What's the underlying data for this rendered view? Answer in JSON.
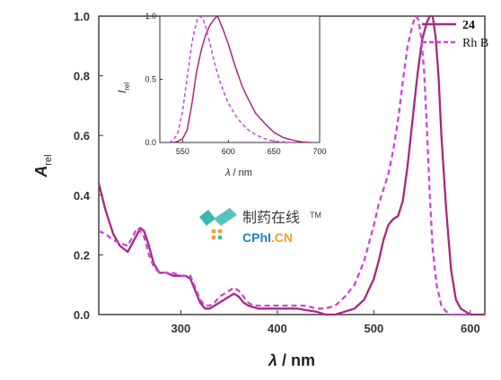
{
  "colors": {
    "series_24": "#a8287e",
    "series_rhb": "#cc44dd",
    "axis": "#333333",
    "watermark_teal": "#39b8b0",
    "watermark_orange": "#f0a030",
    "watermark_blue": "#1f7fc4",
    "watermark_text": "#3b3b3b"
  },
  "chart_data": [
    {
      "id": "main",
      "type": "line",
      "xlabel_symbol": "λ",
      "xlabel_unit": " / nm",
      "ylabel_main": "A",
      "ylabel_sub": "rel",
      "xlim": [
        215,
        615
      ],
      "ylim": [
        0,
        1.0
      ],
      "xticks": [
        300,
        400,
        500,
        600
      ],
      "yticks": [
        0.0,
        0.2,
        0.4,
        0.6,
        0.8,
        1.0
      ],
      "ytick_labels": [
        "0.0",
        "0.2",
        "0.4",
        "0.6",
        "0.8",
        "1.0"
      ],
      "legend": {
        "position": "top-right"
      },
      "series": [
        {
          "name": "24",
          "style": "solid",
          "x": [
            215,
            222,
            230,
            237,
            245,
            250,
            255,
            258,
            262,
            267,
            272,
            278,
            285,
            292,
            300,
            305,
            310,
            315,
            320,
            325,
            330,
            335,
            340,
            345,
            350,
            355,
            360,
            365,
            370,
            375,
            380,
            390,
            400,
            410,
            420,
            430,
            440,
            450,
            460,
            470,
            480,
            490,
            500,
            505,
            510,
            515,
            520,
            525,
            530,
            535,
            540,
            545,
            550,
            555,
            558,
            561,
            564,
            567,
            570,
            575,
            580,
            585,
            590,
            595,
            600,
            605,
            610,
            615
          ],
          "y": [
            0.44,
            0.35,
            0.27,
            0.23,
            0.21,
            0.24,
            0.27,
            0.29,
            0.28,
            0.23,
            0.17,
            0.14,
            0.14,
            0.13,
            0.13,
            0.13,
            0.12,
            0.08,
            0.04,
            0.02,
            0.02,
            0.03,
            0.04,
            0.05,
            0.06,
            0.07,
            0.06,
            0.04,
            0.03,
            0.025,
            0.02,
            0.02,
            0.02,
            0.02,
            0.02,
            0.015,
            0.01,
            0.0,
            0.0,
            0.01,
            0.02,
            0.05,
            0.12,
            0.18,
            0.25,
            0.3,
            0.32,
            0.33,
            0.38,
            0.5,
            0.65,
            0.8,
            0.92,
            0.98,
            1.0,
            1.0,
            0.93,
            0.8,
            0.6,
            0.35,
            0.15,
            0.05,
            0.02,
            0.01,
            0.0,
            0.0,
            0.0,
            0.0
          ]
        },
        {
          "name": "Rh B",
          "style": "dashed",
          "x": [
            215,
            222,
            230,
            237,
            245,
            250,
            255,
            258,
            262,
            267,
            272,
            278,
            285,
            292,
            300,
            305,
            310,
            315,
            320,
            325,
            330,
            335,
            340,
            345,
            350,
            355,
            360,
            365,
            370,
            375,
            380,
            390,
            400,
            410,
            420,
            430,
            440,
            450,
            460,
            470,
            480,
            490,
            500,
            505,
            510,
            515,
            520,
            525,
            530,
            535,
            540,
            543,
            546,
            549,
            552,
            555,
            558,
            561,
            565,
            570,
            575,
            580,
            585,
            590,
            595,
            600
          ],
          "y": [
            0.28,
            0.27,
            0.25,
            0.24,
            0.23,
            0.26,
            0.29,
            0.28,
            0.26,
            0.2,
            0.16,
            0.14,
            0.14,
            0.14,
            0.13,
            0.13,
            0.13,
            0.09,
            0.05,
            0.03,
            0.03,
            0.04,
            0.06,
            0.07,
            0.08,
            0.09,
            0.08,
            0.06,
            0.04,
            0.03,
            0.03,
            0.03,
            0.03,
            0.03,
            0.03,
            0.03,
            0.02,
            0.02,
            0.03,
            0.06,
            0.1,
            0.18,
            0.3,
            0.37,
            0.42,
            0.47,
            0.55,
            0.65,
            0.78,
            0.9,
            0.97,
            1.0,
            0.99,
            0.93,
            0.82,
            0.62,
            0.4,
            0.22,
            0.1,
            0.03,
            0.01,
            0.0,
            0.0,
            0.0,
            0.0,
            0.0
          ]
        }
      ]
    },
    {
      "id": "inset",
      "type": "line",
      "xlabel_symbol": "λ",
      "xlabel_unit": " / nm",
      "ylabel_main": "I",
      "ylabel_sub": "rel",
      "xlim": [
        525,
        700
      ],
      "ylim": [
        0,
        1.0
      ],
      "xticks": [
        550,
        600,
        650,
        700
      ],
      "yticks": [
        0.0,
        0.5,
        1.0
      ],
      "ytick_labels": [
        "0.0",
        "0.5",
        "1.0"
      ],
      "series": [
        {
          "name": "24",
          "style": "solid",
          "x": [
            540,
            545,
            550,
            555,
            560,
            565,
            570,
            575,
            580,
            585,
            588,
            590,
            595,
            600,
            605,
            610,
            615,
            620,
            625,
            630,
            640,
            650,
            660,
            670,
            680,
            690
          ],
          "y": [
            0.0,
            0.01,
            0.03,
            0.1,
            0.3,
            0.55,
            0.72,
            0.85,
            0.93,
            0.98,
            1.0,
            0.97,
            0.88,
            0.78,
            0.66,
            0.55,
            0.45,
            0.37,
            0.3,
            0.23,
            0.15,
            0.08,
            0.04,
            0.02,
            0.005,
            0.0
          ]
        },
        {
          "name": "Rh B",
          "style": "dashed",
          "x": [
            535,
            540,
            545,
            550,
            555,
            560,
            563,
            566,
            569,
            572,
            575,
            580,
            585,
            590,
            595,
            600,
            610,
            620,
            630,
            640,
            650,
            660,
            670
          ],
          "y": [
            0.0,
            0.02,
            0.08,
            0.25,
            0.52,
            0.78,
            0.89,
            0.97,
            1.0,
            0.98,
            0.92,
            0.78,
            0.63,
            0.5,
            0.4,
            0.31,
            0.19,
            0.11,
            0.06,
            0.03,
            0.01,
            0.005,
            0.0
          ]
        }
      ]
    }
  ],
  "watermark": {
    "chinese": "制药在线",
    "tm": "TM",
    "brand_part1": "CPhI",
    "brand_part2": ".CN"
  }
}
